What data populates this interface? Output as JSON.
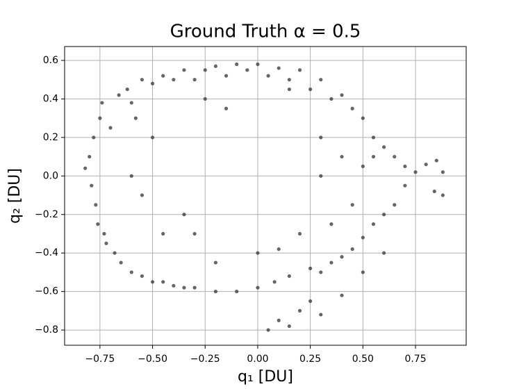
{
  "chart_data": {
    "type": "scatter",
    "title": "Ground Truth α = 0.5",
    "xlabel": "q₁ [DU]",
    "ylabel": "q₂ [DU]",
    "color": "#333333",
    "grid": true,
    "xlim": [
      -0.918,
      0.991
    ],
    "ylim": [
      -0.879,
      0.672
    ],
    "xticks": [
      {
        "value": -0.75,
        "label": "−0.75"
      },
      {
        "value": -0.5,
        "label": "−0.50"
      },
      {
        "value": -0.25,
        "label": "−0.25"
      },
      {
        "value": 0,
        "label": "0.00"
      },
      0.25,
      {
        "value": 0.5,
        "label": "0.50"
      },
      0.75
    ],
    "yticks": [
      {
        "value": -0.8,
        "label": "−0.8"
      },
      {
        "value": -0.6,
        "label": "−0.6"
      },
      {
        "value": -0.4,
        "label": "−0.4"
      },
      {
        "value": -0.2,
        "label": "−0.2"
      },
      {
        "value": 0,
        "label": "0.0"
      },
      0.2,
      0.4,
      0.6
    ],
    "x": [
      -0.82,
      -0.8,
      -0.79,
      -0.78,
      -0.77,
      -0.76,
      -0.75,
      -0.74,
      -0.73,
      -0.72,
      -0.7,
      -0.68,
      -0.66,
      -0.65,
      -0.62,
      -0.6,
      -0.58,
      -0.55,
      -0.55,
      -0.5,
      -0.5,
      -0.45,
      -0.45,
      -0.4,
      -0.4,
      -0.35,
      -0.35,
      -0.3,
      -0.3,
      -0.25,
      -0.2,
      -0.2,
      -0.15,
      -0.1,
      -0.1,
      -0.05,
      0.0,
      0.0,
      0.05,
      0.08,
      0.1,
      0.15,
      0.15,
      0.2,
      0.25,
      0.25,
      0.3,
      0.3,
      0.35,
      0.35,
      0.4,
      0.4,
      0.45,
      0.45,
      0.5,
      0.5,
      0.55,
      0.55,
      0.6,
      0.6,
      0.65,
      0.65,
      0.7,
      0.7,
      0.75,
      0.8,
      0.85,
      0.88,
      0.84,
      0.88,
      -0.6,
      -0.55,
      -0.5,
      -0.45,
      -0.3,
      -0.25,
      0.0,
      0.1,
      0.2,
      0.3,
      0.3,
      0.35,
      0.4,
      0.45,
      0.5,
      0.15,
      -0.15,
      -0.6,
      0.2,
      0.1,
      0.25,
      0.3,
      0.05,
      0.15,
      -0.35,
      -0.2,
      0.6,
      0.55,
      0.5,
      0.4
    ],
    "y": [
      0.04,
      0.1,
      -0.05,
      0.2,
      -0.15,
      -0.25,
      0.3,
      0.38,
      -0.3,
      -0.35,
      0.25,
      -0.4,
      0.42,
      -0.45,
      0.45,
      -0.5,
      0.3,
      0.5,
      -0.52,
      0.48,
      -0.55,
      0.52,
      -0.55,
      0.5,
      -0.57,
      0.55,
      -0.58,
      0.5,
      -0.58,
      0.55,
      0.57,
      -0.6,
      0.52,
      0.58,
      -0.6,
      0.55,
      0.58,
      -0.58,
      0.52,
      -0.55,
      0.56,
      0.5,
      -0.52,
      0.55,
      0.45,
      -0.48,
      0.5,
      -0.5,
      0.4,
      -0.45,
      0.42,
      -0.42,
      0.35,
      -0.38,
      0.3,
      -0.32,
      0.2,
      -0.25,
      0.15,
      -0.2,
      0.1,
      -0.15,
      0.05,
      -0.05,
      0.02,
      0.06,
      0.08,
      -0.1,
      -0.08,
      0.02,
      0.0,
      -0.1,
      0.2,
      -0.3,
      -0.3,
      0.4,
      -0.4,
      -0.38,
      -0.3,
      0.2,
      0.0,
      -0.25,
      0.1,
      -0.15,
      0.05,
      0.45,
      0.35,
      0.38,
      -0.7,
      -0.75,
      -0.65,
      -0.72,
      -0.8,
      -0.78,
      -0.2,
      -0.45,
      -0.4,
      0.1,
      -0.5,
      -0.62
    ]
  }
}
